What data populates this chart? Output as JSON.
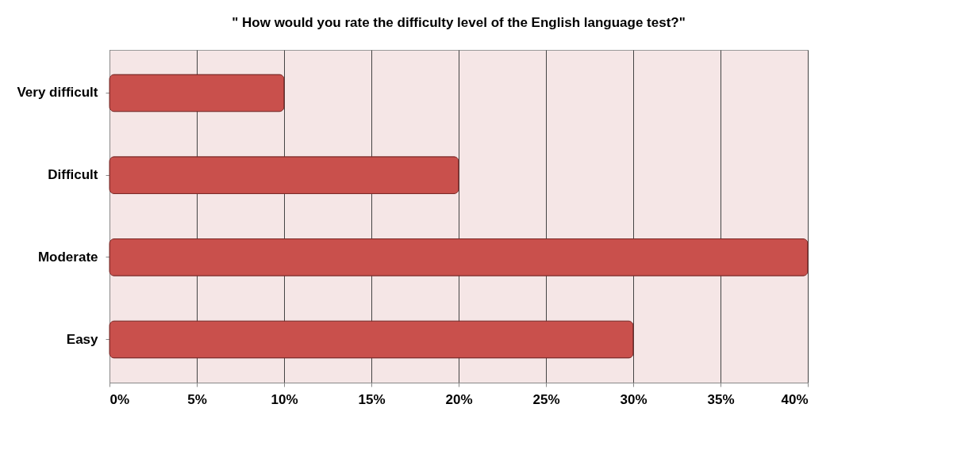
{
  "chart_data": {
    "type": "bar",
    "orientation": "horizontal",
    "title": "\" How would you rate the difficulty level of the English language test?\"",
    "categories": [
      "Very difficult",
      "Difficult",
      "Moderate",
      "Easy"
    ],
    "values": [
      10,
      20,
      40,
      30
    ],
    "color": "#c9504c",
    "xlim": [
      0,
      40
    ],
    "xticks": [
      {
        "value": 0,
        "label": "0%"
      },
      {
        "value": 5,
        "label": "5%"
      },
      {
        "value": 10,
        "label": "10%"
      },
      {
        "value": 15,
        "label": "15%"
      },
      {
        "value": 20,
        "label": "20%"
      },
      {
        "value": 25,
        "label": "25%"
      },
      {
        "value": 30,
        "label": "30%"
      },
      {
        "value": 35,
        "label": "35%"
      },
      {
        "value": 40,
        "label": "40%"
      }
    ],
    "grid": "x"
  }
}
